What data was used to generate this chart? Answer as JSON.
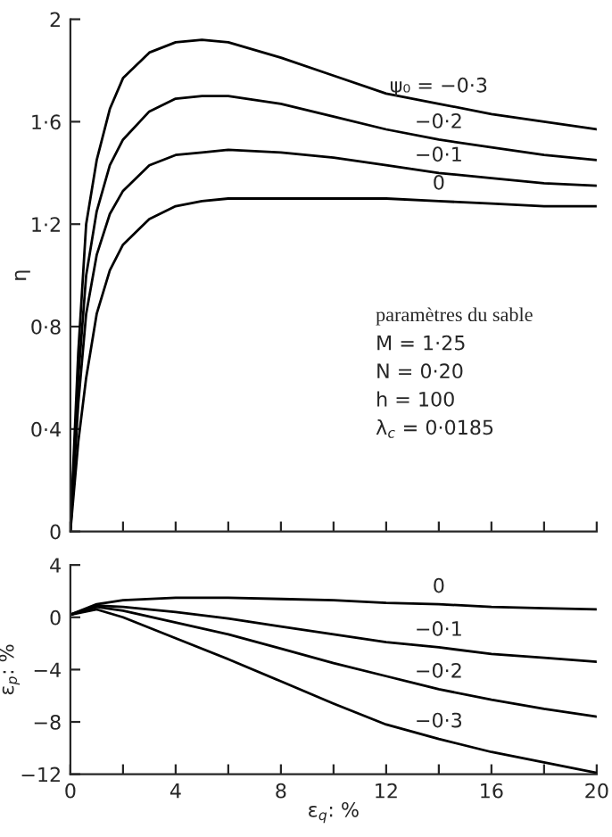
{
  "chart_data": [
    {
      "type": "line",
      "ylabel": "η",
      "tick_labels": "y",
      "x": [
        0,
        0.3,
        0.6,
        1,
        1.5,
        2,
        3,
        4,
        5,
        6,
        8,
        10,
        12,
        14,
        16,
        18,
        20
      ],
      "xlim": [
        0,
        20
      ],
      "xticks": [
        {
          "value": 0,
          "label": null
        },
        {
          "value": 2,
          "label": null
        },
        {
          "value": 4,
          "label": null
        },
        {
          "value": 6,
          "label": null
        },
        {
          "value": 8,
          "label": null
        },
        {
          "value": 10,
          "label": null
        },
        {
          "value": 12,
          "label": null
        },
        {
          "value": 14,
          "label": null
        },
        {
          "value": 16,
          "label": null
        },
        {
          "value": 18,
          "label": null
        },
        {
          "value": 20,
          "label": null
        }
      ],
      "ylim": [
        0,
        2
      ],
      "yticks": [
        {
          "value": 0,
          "label": "0"
        },
        {
          "value": 0.4,
          "label": "0·4"
        },
        {
          "value": 0.8,
          "label": "0·8"
        },
        {
          "value": 1.2,
          "label": "1·2"
        },
        {
          "value": 1.6,
          "label": "1·6"
        },
        {
          "value": 2,
          "label": "2"
        }
      ],
      "series": [
        {
          "color": "#000000",
          "values": [
            0,
            0.7,
            1.2,
            1.45,
            1.65,
            1.77,
            1.87,
            1.91,
            1.92,
            1.91,
            1.85,
            1.78,
            1.71,
            1.67,
            1.63,
            1.6,
            1.57
          ]
        },
        {
          "color": "#000000",
          "values": [
            0,
            0.6,
            1.0,
            1.25,
            1.43,
            1.53,
            1.64,
            1.69,
            1.7,
            1.7,
            1.67,
            1.62,
            1.57,
            1.53,
            1.5,
            1.47,
            1.45
          ]
        },
        {
          "color": "#000000",
          "values": [
            0,
            0.5,
            0.85,
            1.08,
            1.24,
            1.33,
            1.43,
            1.47,
            1.48,
            1.49,
            1.48,
            1.46,
            1.43,
            1.4,
            1.38,
            1.36,
            1.35
          ]
        },
        {
          "color": "#000000",
          "values": [
            0,
            0.35,
            0.6,
            0.85,
            1.02,
            1.12,
            1.22,
            1.27,
            1.29,
            1.3,
            1.3,
            1.3,
            1.3,
            1.29,
            1.28,
            1.27,
            1.27
          ]
        }
      ],
      "annotations": [
        "ψ₀ = −0·3",
        "−0·2",
        "−0·1",
        "0",
        "paramètres du sable",
        "M = 1·25",
        "N = 0·20",
        "h = 100",
        "λ$_{c}$ = 0·0185"
      ]
    },
    {
      "type": "line",
      "xlabel": "ε$_{q}$: %",
      "ylabel": "ε$_{p}$: %",
      "x": [
        0,
        1,
        2,
        4,
        6,
        8,
        10,
        12,
        14,
        16,
        18,
        20
      ],
      "xlim": [
        0,
        20
      ],
      "xticks": [
        0,
        {
          "value": 2,
          "label": null
        },
        4,
        {
          "value": 6,
          "label": null
        },
        8,
        {
          "value": 10,
          "label": null
        },
        12,
        {
          "value": 14,
          "label": null
        },
        16,
        {
          "value": 18,
          "label": null
        },
        20
      ],
      "ylim": [
        -12,
        4
      ],
      "yticks": [
        {
          "value": -12,
          "label": "−12"
        },
        {
          "value": -8,
          "label": "−8"
        },
        {
          "value": -4,
          "label": "−4"
        },
        0,
        4
      ],
      "series": [
        {
          "color": "#000000",
          "values": [
            0.2,
            1.0,
            1.3,
            1.5,
            1.5,
            1.4,
            1.3,
            1.1,
            1.0,
            0.8,
            0.7,
            0.6
          ]
        },
        {
          "color": "#000000",
          "values": [
            0.2,
            0.9,
            0.8,
            0.4,
            -0.1,
            -0.7,
            -1.3,
            -1.9,
            -2.3,
            -2.8,
            -3.1,
            -3.4
          ]
        },
        {
          "color": "#000000",
          "values": [
            0.2,
            0.8,
            0.5,
            -0.4,
            -1.3,
            -2.4,
            -3.5,
            -4.5,
            -5.5,
            -6.3,
            -7.0,
            -7.6
          ]
        },
        {
          "color": "#000000",
          "values": [
            0.2,
            0.6,
            0.0,
            -1.6,
            -3.2,
            -4.9,
            -6.6,
            -8.2,
            -9.3,
            -10.3,
            -11.1,
            -11.9
          ]
        }
      ],
      "annotations": [
        "0",
        "−0·1",
        "−0·2",
        "−0·3"
      ]
    }
  ]
}
